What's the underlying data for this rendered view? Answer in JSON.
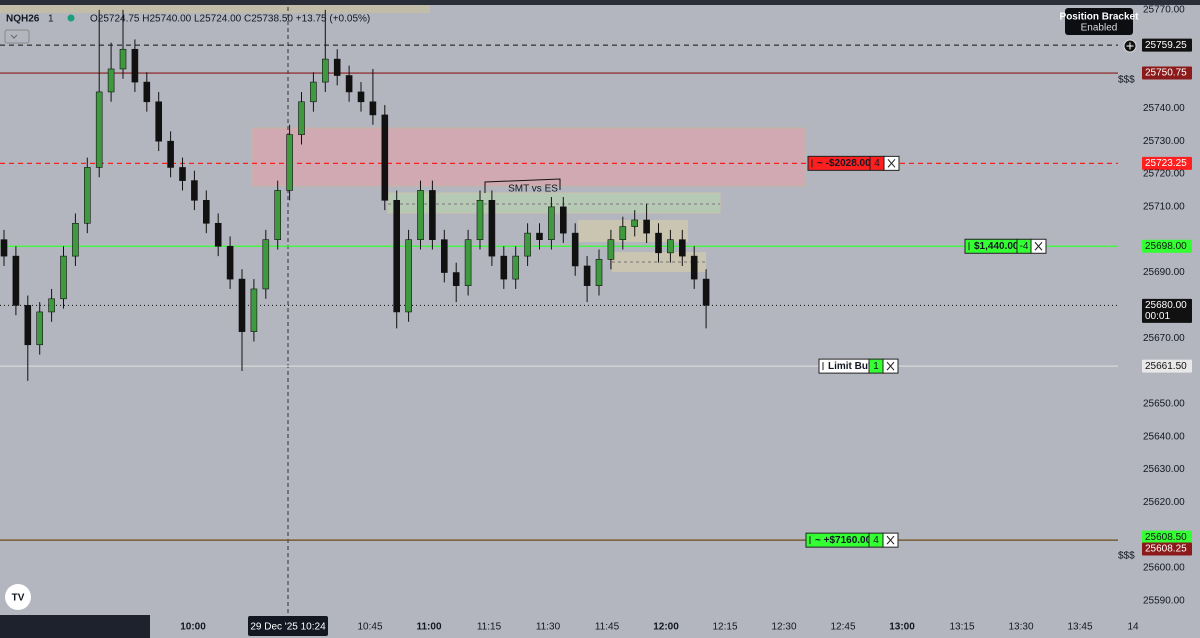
{
  "chart_data": {
    "type": "candlestick",
    "symbol": "NQH26",
    "interval": "1",
    "ohlc_text": "O25724.75 H25740.00 L25724.00 C25738.50 +13.75 (+0.05%)",
    "annotation": "SMT vs ES",
    "tooltip": {
      "title": "Position Bracket",
      "subtitle": "Enabled"
    },
    "crosshair_time": "29 Dec '25  10:24",
    "time_labels": [
      "10:00",
      "10:45",
      "11:00",
      "11:15",
      "11:30",
      "11:45",
      "12:00",
      "12:15",
      "12:30",
      "12:45",
      "13:00",
      "13:15",
      "13:30",
      "13:45",
      "14"
    ],
    "ylim": [
      25585.7,
      25773.0
    ],
    "yticks": [
      {
        "value": 25770,
        "label": "25770.00"
      },
      {
        "value": 25740,
        "label": "25740.00"
      },
      {
        "value": 25730,
        "label": "25730.00"
      },
      {
        "value": 25720,
        "label": "25720.00"
      },
      {
        "value": 25710,
        "label": "25710.00"
      },
      {
        "value": 25690,
        "label": "25690.00"
      },
      {
        "value": 25670,
        "label": "25670.00"
      },
      {
        "value": 25650,
        "label": "25650.00"
      },
      {
        "value": 25640,
        "label": "25640.00"
      },
      {
        "value": 25630,
        "label": "25630.00"
      },
      {
        "value": 25620,
        "label": "25620.00"
      },
      {
        "value": 25600,
        "label": "25600.00"
      },
      {
        "value": 25590,
        "label": "25590.00"
      }
    ],
    "up_color": "#3f9a3f",
    "down_color": "#111111",
    "candles": [
      [
        25700,
        25703,
        25692,
        25695
      ],
      [
        25695,
        25698,
        25677,
        25680
      ],
      [
        25680,
        25683,
        25657,
        25668
      ],
      [
        25668,
        25681,
        25665,
        25678
      ],
      [
        25678,
        25685,
        25675,
        25682
      ],
      [
        25682,
        25698,
        25679,
        25695
      ],
      [
        25695,
        25708,
        25692,
        25705
      ],
      [
        25705,
        25725,
        25702,
        25722
      ],
      [
        25722,
        25770,
        25719,
        25745
      ],
      [
        25745,
        25760,
        25742,
        25752
      ],
      [
        25752,
        25770,
        25749,
        25758
      ],
      [
        25758,
        25761,
        25745,
        25748
      ],
      [
        25748,
        25751,
        25739,
        25742
      ],
      [
        25742,
        25745,
        25727,
        25730
      ],
      [
        25730,
        25733,
        25719,
        25722
      ],
      [
        25722,
        25725,
        25715,
        25718
      ],
      [
        25718,
        25721,
        25709,
        25712
      ],
      [
        25712,
        25715,
        25702,
        25705
      ],
      [
        25705,
        25708,
        25695,
        25698
      ],
      [
        25698,
        25701,
        25685,
        25688
      ],
      [
        25688,
        25691,
        25660,
        25672
      ],
      [
        25672,
        25688,
        25669,
        25685
      ],
      [
        25685,
        25703,
        25682,
        25700
      ],
      [
        25700,
        25718,
        25697,
        25715
      ],
      [
        25715,
        25735,
        25712,
        25732
      ],
      [
        25732,
        25745,
        25729,
        25742
      ],
      [
        25742,
        25751,
        25739,
        25748
      ],
      [
        25748,
        25770,
        25745,
        25755
      ],
      [
        25755,
        25758,
        25747,
        25750
      ],
      [
        25750,
        25753,
        25742,
        25745
      ],
      [
        25745,
        25748,
        25739,
        25742
      ],
      [
        25742,
        25752,
        25735,
        25738
      ],
      [
        25738,
        25741,
        25709,
        25712
      ],
      [
        25712,
        25715,
        25673,
        25678
      ],
      [
        25678,
        25703,
        25675,
        25700
      ],
      [
        25700,
        25718,
        25697,
        25715
      ],
      [
        25715,
        25718,
        25697,
        25700
      ],
      [
        25700,
        25703,
        25687,
        25690
      ],
      [
        25690,
        25693,
        25681,
        25686
      ],
      [
        25686,
        25703,
        25683,
        25700
      ],
      [
        25700,
        25715,
        25697,
        25712
      ],
      [
        25712,
        25715,
        25692,
        25695
      ],
      [
        25695,
        25698,
        25685,
        25688
      ],
      [
        25688,
        25698,
        25685,
        25695
      ],
      [
        25695,
        25705,
        25692,
        25702
      ],
      [
        25702,
        25705,
        25697,
        25700
      ],
      [
        25700,
        25713,
        25697,
        25710
      ],
      [
        25710,
        25713,
        25699,
        25702
      ],
      [
        25702,
        25705,
        25689,
        25692
      ],
      [
        25692,
        25695,
        25681,
        25686
      ],
      [
        25686,
        25697,
        25683,
        25694
      ],
      [
        25694,
        25703,
        25691,
        25700
      ],
      [
        25700,
        25707,
        25697,
        25704
      ],
      [
        25704,
        25709,
        25701,
        25706
      ],
      [
        25706,
        25711,
        25699,
        25702
      ],
      [
        25702,
        25705,
        25693,
        25696
      ],
      [
        25696,
        25703,
        25693,
        25700
      ],
      [
        25700,
        25703,
        25692,
        25695
      ],
      [
        25695,
        25698,
        25685,
        25688
      ],
      [
        25688,
        25691,
        25673,
        25680
      ]
    ],
    "levels": [
      {
        "value": 25759.25,
        "label": "25759.25",
        "color": "#111111",
        "line_style": "dashed"
      },
      {
        "value": 25750.75,
        "label": "25750.75",
        "color": "#8b1a1a",
        "line_style": "solid",
        "note": "$$$"
      },
      {
        "value": 25723.25,
        "label": "25723.25",
        "color": "#ff1f1f",
        "line_style": "dashed",
        "order": {
          "text": "~ -$2028.00",
          "qty": "4",
          "color": "#ff1f1f"
        }
      },
      {
        "value": 25698.0,
        "label": "25698.00",
        "color": "#33ff33",
        "line_style": "solid",
        "order": {
          "text": "$1,440.00",
          "qty": "-4",
          "color": "#33ff33"
        }
      },
      {
        "value": 25680.0,
        "label": "25680.00",
        "color": "#111111",
        "line_style": "dotted",
        "countdown": "00:01"
      },
      {
        "value": 25661.5,
        "label": "25661.50",
        "color": "#e8e8e8",
        "line_style": "solid",
        "order": {
          "text": "Limit Buy",
          "qty": "1",
          "color": "#ffffff"
        }
      },
      {
        "value": 25608.5,
        "label": "25608.50",
        "color": "#33ff33",
        "line_style": "solid",
        "order": {
          "text": "~ +$7160.00",
          "qty": "4",
          "color": "#33ff33"
        }
      },
      {
        "value": 25608.25,
        "label": "25608.25",
        "color": "#8b1a1a",
        "line_style": "none",
        "note": "$$$"
      }
    ]
  }
}
